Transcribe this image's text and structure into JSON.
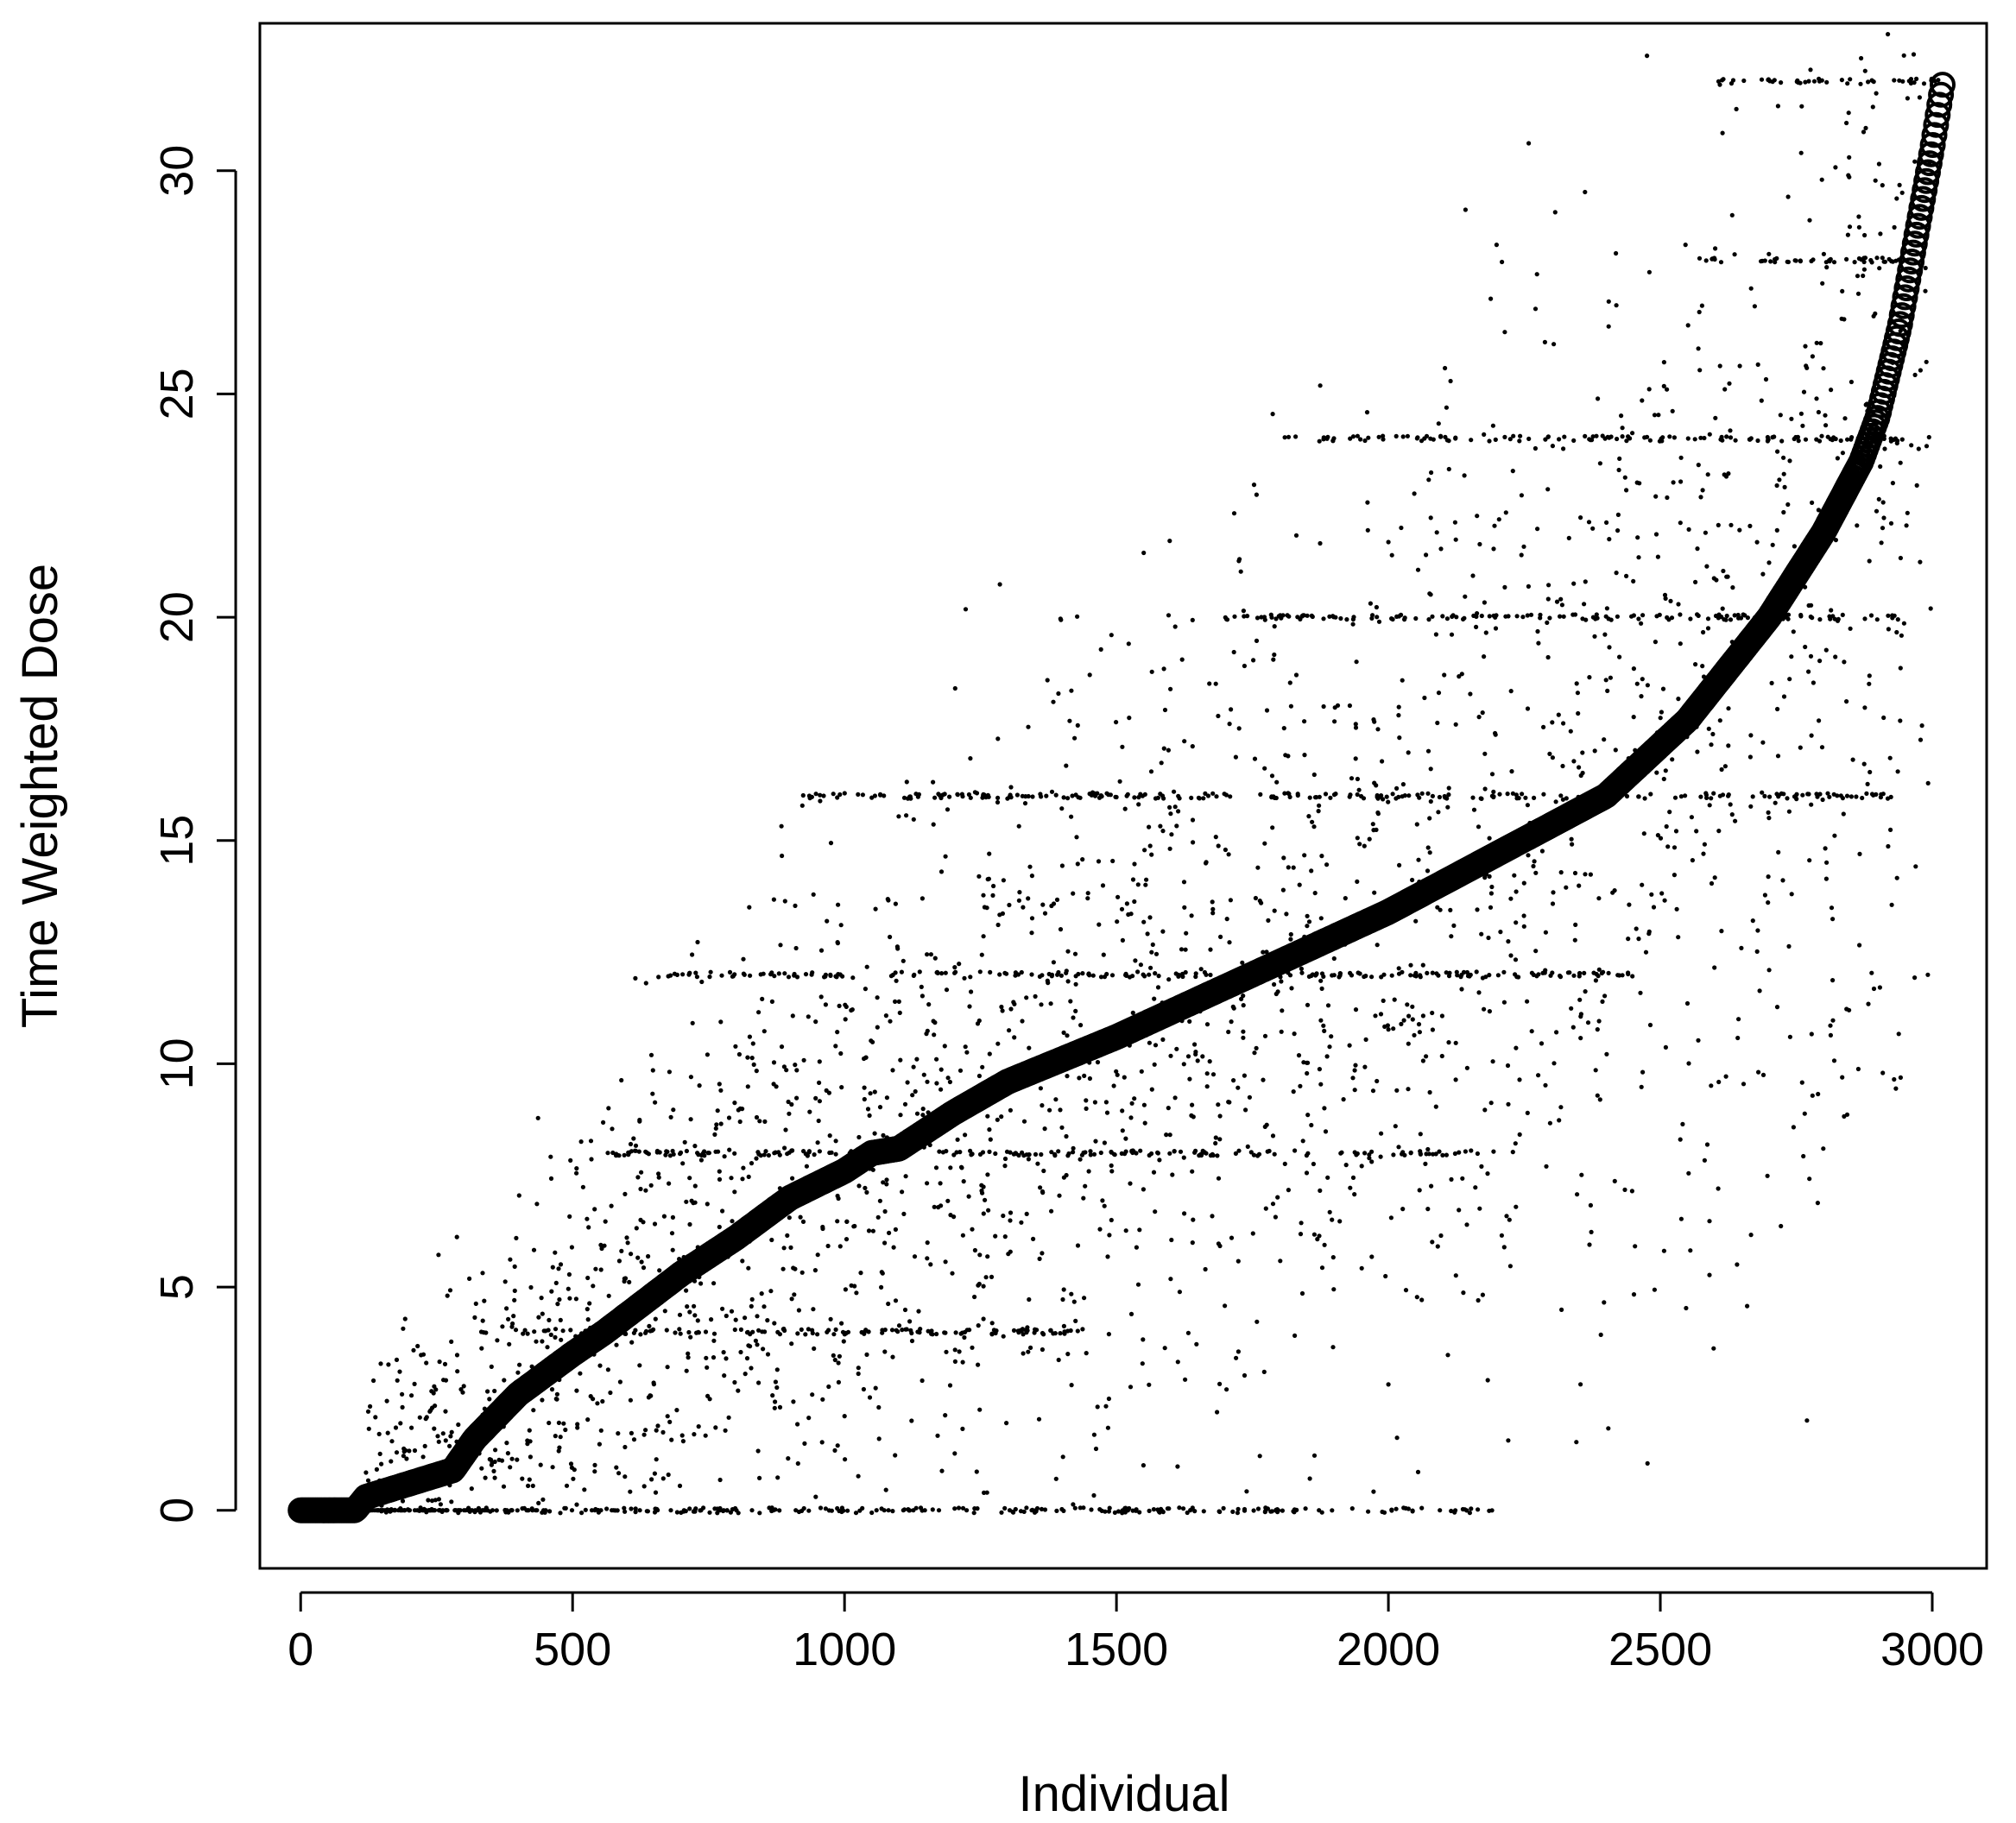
{
  "chart_data": {
    "type": "scatter",
    "title": "",
    "xlabel": "Individual",
    "ylabel": "Time Weighted Dose",
    "xlim": [
      -75,
      3100
    ],
    "ylim": [
      -1.3,
      33.3
    ],
    "xticks": [
      0,
      500,
      1000,
      1500,
      2000,
      2500,
      3000
    ],
    "yticks": [
      0,
      5,
      10,
      15,
      20,
      25,
      30
    ],
    "xtick_labels": [
      "0",
      "500",
      "1000",
      "1500",
      "2000",
      "2500",
      "3000"
    ],
    "ytick_labels": [
      "0",
      "5",
      "10",
      "15",
      "20",
      "25",
      "30"
    ],
    "grid": false,
    "legend": "none",
    "series": [
      {
        "role": "sorted time-weighted dose (open circles, dense curve)",
        "marker": "open-circle",
        "n_points": 3020,
        "x_range": [
          0,
          3020
        ],
        "y_range": [
          0,
          32
        ],
        "knots": [
          [
            0,
            0
          ],
          [
            100,
            0
          ],
          [
            120,
            0.3
          ],
          [
            200,
            0.6
          ],
          [
            280,
            0.9
          ],
          [
            320,
            1.6
          ],
          [
            400,
            2.6
          ],
          [
            500,
            3.5
          ],
          [
            560,
            4.0
          ],
          [
            700,
            5.3
          ],
          [
            800,
            6.1
          ],
          [
            900,
            7.0
          ],
          [
            1000,
            7.6
          ],
          [
            1050,
            8.0
          ],
          [
            1100,
            8.1
          ],
          [
            1200,
            8.9
          ],
          [
            1300,
            9.6
          ],
          [
            1500,
            10.6
          ],
          [
            1750,
            12.0
          ],
          [
            2000,
            13.4
          ],
          [
            2200,
            14.7
          ],
          [
            2400,
            16.0
          ],
          [
            2550,
            17.7
          ],
          [
            2700,
            20.0
          ],
          [
            2800,
            21.9
          ],
          [
            2870,
            23.5
          ],
          [
            2900,
            24.5
          ],
          [
            2940,
            26.5
          ],
          [
            2970,
            28.5
          ],
          [
            3000,
            30.5
          ],
          [
            3020,
            32.0
          ]
        ]
      },
      {
        "role": "individual observed doses (small dots)",
        "marker": "dot",
        "description": "thousands of points scattered around the curve, concentrated on horizontal bands",
        "bands": [
          {
            "y": 0,
            "x_range": [
              130,
              2200
            ]
          },
          {
            "y": 4,
            "x_range": [
              330,
              1450
            ]
          },
          {
            "y": 8,
            "x_range": [
              560,
              2200
            ]
          },
          {
            "y": 12,
            "x_range": [
              650,
              2450
            ]
          },
          {
            "y": 16,
            "x_range": [
              900,
              2950
            ]
          },
          {
            "y": 20,
            "x_range": [
              1700,
              2950
            ]
          },
          {
            "y": 24,
            "x_range": [
              1800,
              2950
            ]
          },
          {
            "y": 28,
            "x_range": [
              2560,
              2950
            ]
          },
          {
            "y": 32,
            "x_range": [
              2600,
              3020
            ]
          }
        ]
      }
    ]
  }
}
